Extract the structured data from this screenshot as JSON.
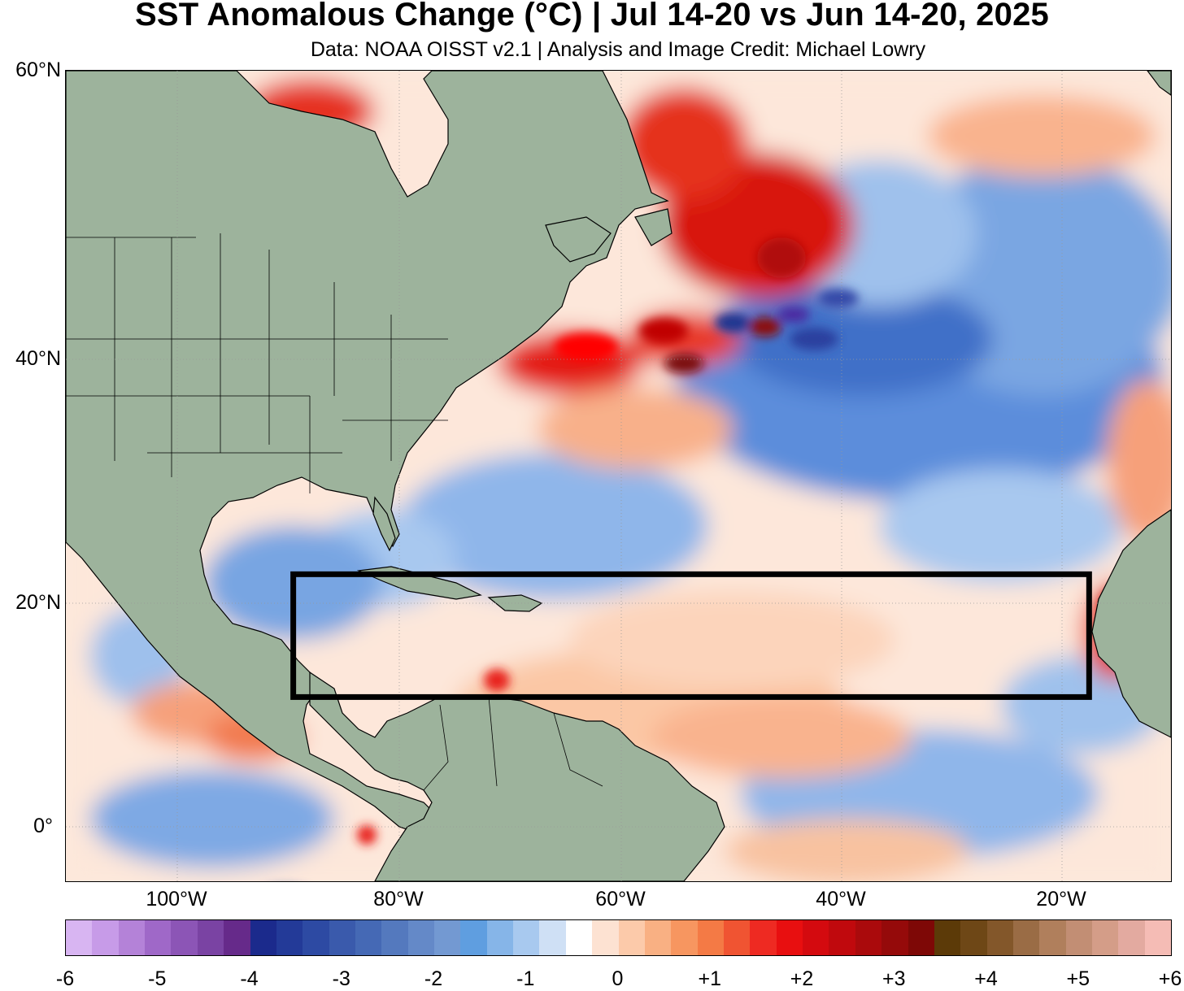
{
  "header": {
    "title": "SST Anomalous Change (°C) | Jul 14-20 vs Jun 14-20, 2025",
    "subtitle": "Data: NOAA OISST v2.1 | Analysis and Image Credit: Michael Lowry"
  },
  "map": {
    "lat_labels": [
      "60°N",
      "40°N",
      "20°N",
      "0°"
    ],
    "lon_labels": [
      "100°W",
      "80°W",
      "60°W",
      "40°W",
      "20°W"
    ],
    "box": {
      "lon_min": -90,
      "lon_max": -20,
      "lat_min": 10,
      "lat_max": 20
    },
    "colors": {
      "land": "#9db39c",
      "warm": "#ef3b2c",
      "cool": "#5a8fd8"
    }
  },
  "colorbar": {
    "tick_labels": [
      "-6",
      "-5",
      "-4",
      "-3",
      "-2",
      "-1",
      "0",
      "+1",
      "+2",
      "+3",
      "+4",
      "+5",
      "+6"
    ],
    "colors": [
      "#d8b5f2",
      "#c79be8",
      "#b482d8",
      "#9f68c8",
      "#8c55b6",
      "#7a43a3",
      "#662a8a",
      "#1b2a8c",
      "#233a98",
      "#2d4aa3",
      "#3a5aac",
      "#4569b5",
      "#5479be",
      "#6489c8",
      "#7399d2",
      "#5f9ee0",
      "#86b5e8",
      "#a8c9ef",
      "#cfe0f5",
      "#ffffff",
      "#fde2d2",
      "#fccaaa",
      "#f9b083",
      "#f79660",
      "#f47a45",
      "#f05432",
      "#ee2a22",
      "#e80f10",
      "#d40a0f",
      "#c0090d",
      "#aa0a0c",
      "#950a0a",
      "#7e0806",
      "#5c3a08",
      "#6e4716",
      "#83572a",
      "#9a6c45",
      "#b07f5c",
      "#c28e74",
      "#d49d88",
      "#e3aaa0",
      "#f5bcb5"
    ]
  }
}
